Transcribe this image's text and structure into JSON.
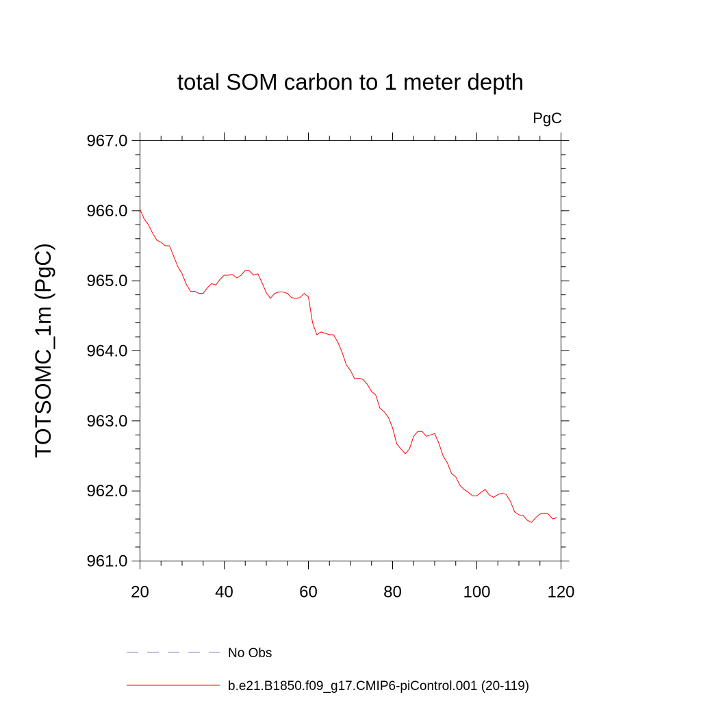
{
  "colors": {
    "model_line": "#ff0000",
    "obs_line": "#8080d0",
    "axis": "#000000",
    "background": "#ffffff"
  },
  "chart_data": {
    "type": "line",
    "title": "total SOM carbon to 1 meter depth",
    "units_label": "PgC",
    "xlabel": "",
    "ylabel": "TOTSOMC_1m  (PgC)",
    "xlim": [
      20,
      120
    ],
    "ylim": [
      961.0,
      967.0
    ],
    "x_ticks": [
      20,
      40,
      60,
      80,
      100,
      120
    ],
    "x_tick_labels": [
      "20",
      "40",
      "60",
      "80",
      "100",
      "120"
    ],
    "y_ticks": [
      961.0,
      962.0,
      963.0,
      964.0,
      965.0,
      966.0,
      967.0
    ],
    "y_tick_labels": [
      "961.0",
      "962.0",
      "963.0",
      "964.0",
      "965.0",
      "966.0",
      "967.0"
    ],
    "legend": [
      {
        "label": "No Obs",
        "style": "dashed",
        "color": "#8080d0"
      },
      {
        "label": "b.e21.B1850.f09_g17.CMIP6-piControl.001 (20-119)",
        "style": "solid",
        "color": "#ff0000"
      }
    ],
    "series": [
      {
        "name": "b.e21.B1850.f09_g17.CMIP6-piControl.001 (20-119)",
        "x": [
          20,
          21,
          22,
          23,
          24,
          25,
          26,
          27,
          28,
          29,
          30,
          31,
          32,
          33,
          34,
          35,
          36,
          37,
          38,
          39,
          40,
          41,
          42,
          43,
          44,
          45,
          46,
          47,
          48,
          49,
          50,
          51,
          52,
          53,
          54,
          55,
          56,
          57,
          58,
          59,
          60,
          61,
          62,
          63,
          64,
          65,
          66,
          67,
          68,
          69,
          70,
          71,
          72,
          73,
          74,
          75,
          76,
          77,
          78,
          79,
          80,
          81,
          82,
          83,
          84,
          85,
          86,
          87,
          88,
          89,
          90,
          91,
          92,
          93,
          94,
          95,
          96,
          97,
          98,
          99,
          100,
          101,
          102,
          103,
          104,
          105,
          106,
          107,
          108,
          109,
          110,
          111,
          112,
          113,
          114,
          115,
          116,
          117,
          118,
          119
        ],
        "values": [
          966.02,
          965.88,
          965.8,
          965.68,
          965.58,
          965.55,
          965.5,
          965.5,
          965.35,
          965.2,
          965.1,
          964.95,
          964.85,
          964.85,
          964.82,
          964.82,
          964.9,
          964.96,
          964.94,
          965.02,
          965.08,
          965.08,
          965.09,
          965.04,
          965.08,
          965.15,
          965.14,
          965.08,
          965.1,
          964.97,
          964.83,
          964.75,
          964.82,
          964.84,
          964.84,
          964.82,
          964.76,
          964.75,
          964.76,
          964.82,
          964.77,
          964.4,
          964.23,
          964.27,
          964.25,
          964.23,
          964.23,
          964.12,
          963.98,
          963.8,
          963.72,
          963.6,
          963.61,
          963.59,
          963.52,
          963.42,
          963.37,
          963.18,
          963.13,
          963.05,
          962.9,
          962.67,
          962.6,
          962.53,
          962.6,
          962.78,
          962.85,
          962.85,
          962.78,
          962.8,
          962.82,
          962.68,
          962.5,
          962.4,
          962.25,
          962.2,
          962.08,
          962.02,
          961.98,
          961.93,
          961.93,
          961.98,
          962.02,
          961.94,
          961.91,
          961.95,
          961.97,
          961.95,
          961.85,
          961.7,
          961.66,
          961.65,
          961.58,
          961.55,
          961.62,
          961.67,
          961.68,
          961.67,
          961.6,
          961.62
        ]
      }
    ]
  }
}
